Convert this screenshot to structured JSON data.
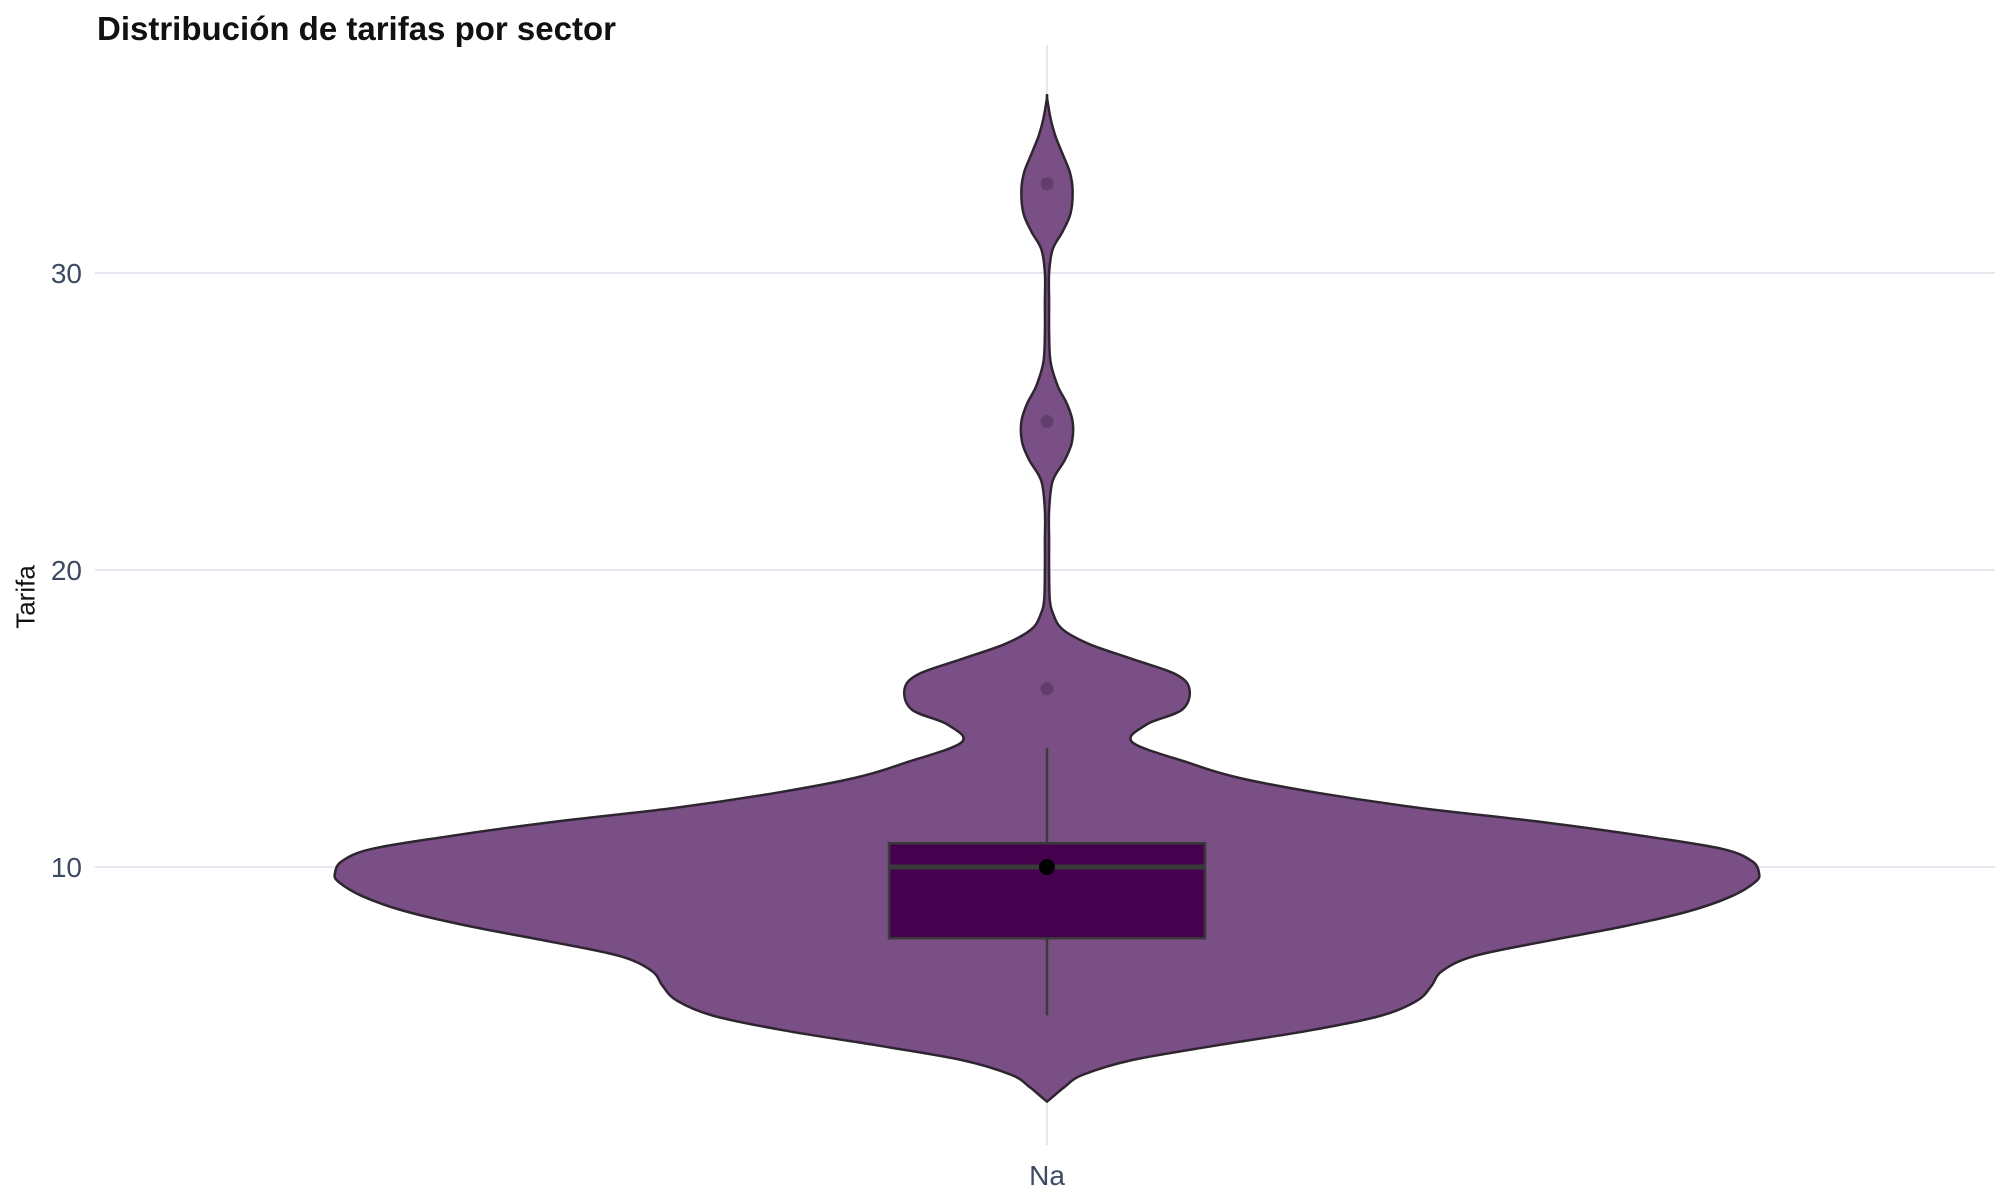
{
  "chart_data": {
    "type": "violin",
    "title": "Distribución de tarifas por sector",
    "xlabel": "",
    "ylabel": "Tarifa",
    "categories": [
      "Na"
    ],
    "y_ticks": [
      10,
      20,
      30
    ],
    "ylim": [
      1.3,
      37.3
    ],
    "grid": true,
    "legend": "none",
    "colors": {
      "violin_fill": "#7a4f86",
      "violin_outline": "#2e2530",
      "box_fill": "#45004e",
      "box_outline": "#3a3a3a",
      "grid": "#e3e8ef",
      "tick_text": "#3d4a63"
    },
    "box": {
      "min": 5.0,
      "q1": 7.6,
      "median": 10.0,
      "q3": 10.8,
      "max": 14.0
    },
    "mean": 10.0,
    "points": [
      16.0,
      25.0,
      33.0
    ],
    "density": [
      [
        2.1,
        0.0
      ],
      [
        2.3,
        0.01
      ],
      [
        2.6,
        0.025
      ],
      [
        3.0,
        0.05
      ],
      [
        3.5,
        0.12
      ],
      [
        4.0,
        0.24
      ],
      [
        4.5,
        0.37
      ],
      [
        5.0,
        0.47
      ],
      [
        5.5,
        0.52
      ],
      [
        6.0,
        0.54
      ],
      [
        6.5,
        0.555
      ],
      [
        7.0,
        0.6
      ],
      [
        7.5,
        0.7
      ],
      [
        8.0,
        0.81
      ],
      [
        8.5,
        0.9
      ],
      [
        9.0,
        0.96
      ],
      [
        9.5,
        0.995
      ],
      [
        9.8,
        1.0
      ],
      [
        10.2,
        0.99
      ],
      [
        10.6,
        0.95
      ],
      [
        11.0,
        0.85
      ],
      [
        11.5,
        0.7
      ],
      [
        12.0,
        0.52
      ],
      [
        12.5,
        0.38
      ],
      [
        13.0,
        0.27
      ],
      [
        13.5,
        0.2
      ],
      [
        14.2,
        0.12
      ],
      [
        14.8,
        0.14
      ],
      [
        15.3,
        0.19
      ],
      [
        16.0,
        0.2
      ],
      [
        16.5,
        0.18
      ],
      [
        17.0,
        0.12
      ],
      [
        17.5,
        0.06
      ],
      [
        18.0,
        0.022
      ],
      [
        18.5,
        0.009
      ],
      [
        19.0,
        0.004
      ],
      [
        20.0,
        0.003
      ],
      [
        21.0,
        0.003
      ],
      [
        22.0,
        0.003
      ],
      [
        23.0,
        0.008
      ],
      [
        23.7,
        0.025
      ],
      [
        24.3,
        0.035
      ],
      [
        25.0,
        0.036
      ],
      [
        25.6,
        0.028
      ],
      [
        26.2,
        0.015
      ],
      [
        27.0,
        0.005
      ],
      [
        28.0,
        0.003
      ],
      [
        29.0,
        0.003
      ],
      [
        30.0,
        0.003
      ],
      [
        30.8,
        0.008
      ],
      [
        31.4,
        0.022
      ],
      [
        32.0,
        0.033
      ],
      [
        32.8,
        0.036
      ],
      [
        33.4,
        0.032
      ],
      [
        34.0,
        0.022
      ],
      [
        34.6,
        0.012
      ],
      [
        35.2,
        0.005
      ],
      [
        35.9,
        0.0
      ]
    ]
  }
}
